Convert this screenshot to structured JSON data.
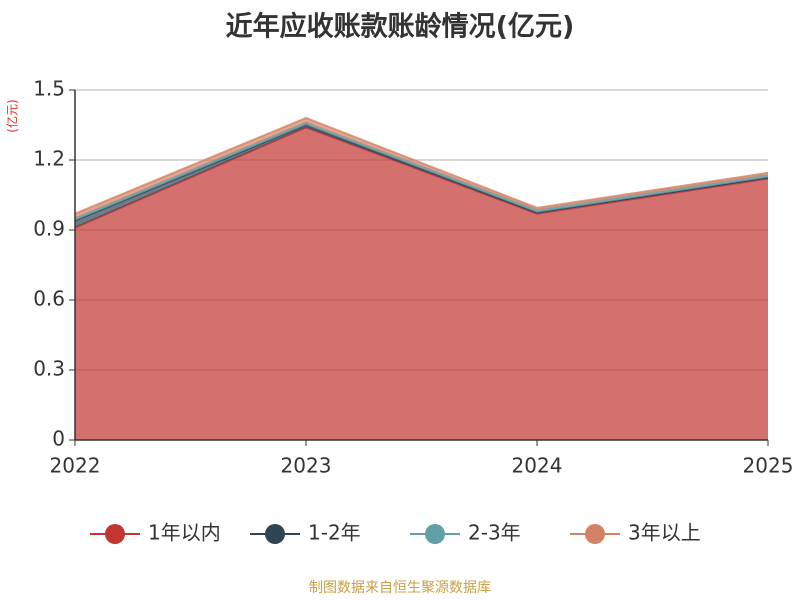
{
  "chart_data": {
    "type": "stacked_area",
    "title": "近年应收账款账龄情况(亿元)",
    "y_label": "(亿元)",
    "categories": [
      "2022",
      "2023",
      "2024",
      "2025"
    ],
    "series": [
      {
        "name": "1年以内",
        "color": "#c23531",
        "values": [
          0.91,
          1.34,
          0.97,
          1.12
        ]
      },
      {
        "name": "1-2年",
        "color": "#2f4554",
        "values": [
          0.03,
          0.01,
          0.005,
          0.005
        ]
      },
      {
        "name": "2-3年",
        "color": "#61a0a8",
        "values": [
          0.01,
          0.01,
          0.01,
          0.01
        ]
      },
      {
        "name": "3年以上",
        "color": "#d48265",
        "values": [
          0.02,
          0.02,
          0.01,
          0.01
        ]
      }
    ],
    "ylim": [
      0,
      1.5
    ],
    "yticks": [
      0,
      0.3,
      0.6,
      0.9,
      1.2,
      1.5
    ],
    "grid": true,
    "source": "制图数据来自恒生聚源数据库"
  }
}
